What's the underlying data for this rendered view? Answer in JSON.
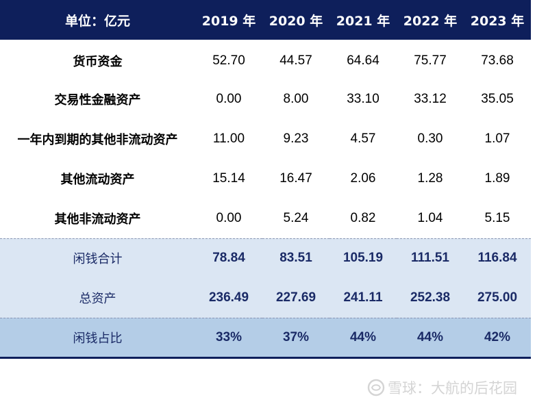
{
  "header": {
    "label": "单位：亿元",
    "years": [
      "2019 年",
      "2020 年",
      "2021 年",
      "2022 年",
      "2023 年"
    ]
  },
  "rows": [
    {
      "label": "货币资金",
      "values": [
        "52.70",
        "44.57",
        "64.64",
        "75.77",
        "73.68"
      ]
    },
    {
      "label": "交易性金融资产",
      "values": [
        "0.00",
        "8.00",
        "33.10",
        "33.12",
        "35.05"
      ]
    },
    {
      "label": "一年内到期的其他非流动资产",
      "values": [
        "11.00",
        "9.23",
        "4.57",
        "0.30",
        "1.07"
      ]
    },
    {
      "label": "其他流动资产",
      "values": [
        "15.14",
        "16.47",
        "2.06",
        "1.28",
        "1.89"
      ]
    },
    {
      "label": "其他非流动资产",
      "values": [
        "0.00",
        "5.24",
        "0.82",
        "1.04",
        "5.15"
      ]
    }
  ],
  "summary": [
    {
      "label": "闲钱合计",
      "values": [
        "78.84",
        "83.51",
        "105.19",
        "111.51",
        "116.84"
      ]
    },
    {
      "label": "总资产",
      "values": [
        "236.49",
        "227.69",
        "241.11",
        "252.38",
        "275.00"
      ]
    }
  ],
  "ratio": {
    "label": "闲钱占比",
    "values": [
      "33%",
      "37%",
      "44%",
      "44%",
      "42%"
    ]
  },
  "watermark": {
    "text": "雪球：大航的后花园",
    "icon": "snowball-logo-icon"
  },
  "colors": {
    "header_bg": "#0e1f5b",
    "summary_bg": "#dbe6f3",
    "ratio_bg": "#b4cde7"
  }
}
